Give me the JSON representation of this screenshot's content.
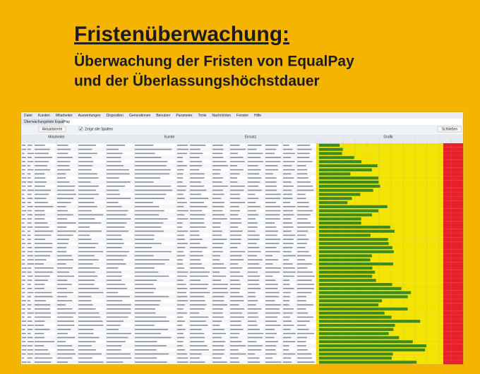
{
  "slide": {
    "title": "Fristenüberwachung:",
    "subtitle_lines": [
      "Überwachung der Fristen von EqualPay",
      "und der Überlassungshöchstdauer"
    ]
  },
  "app": {
    "menu": [
      "Datei",
      "Kunden",
      "Mitarbeiter",
      "Auswertungen",
      "Disposition",
      "Generationen",
      "Benutzer",
      "Parameter",
      "Tools",
      "Nachrichten",
      "Fenster",
      "Hilfe"
    ],
    "tab": "Überwachungsliste EqualPay",
    "toolbar": {
      "refresh": "Aktualisieren",
      "show_all": "Zeige alle Spalten",
      "close": "Schließen"
    },
    "groups": [
      "Mitarbeiter",
      "Kunde",
      "Einsatz",
      "Grafik"
    ]
  }
}
